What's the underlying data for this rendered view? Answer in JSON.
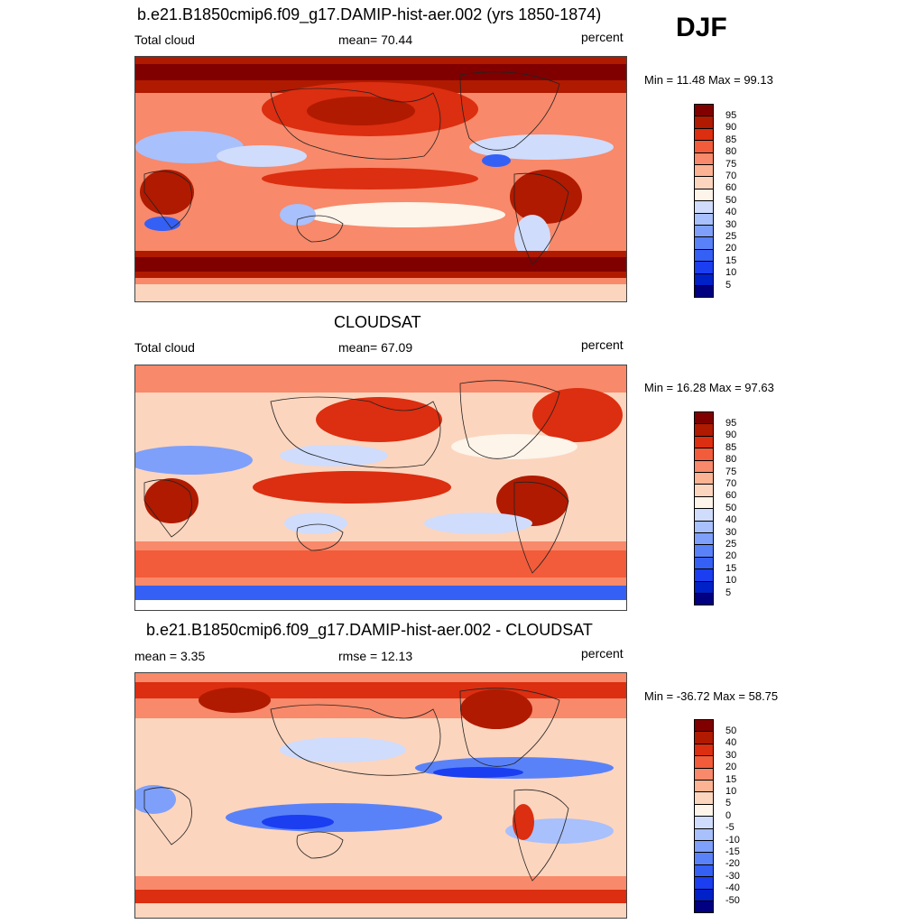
{
  "season": "DJF",
  "palette_levels": {
    "abs": [
      "5",
      "10",
      "15",
      "20",
      "25",
      "30",
      "40",
      "50",
      "60",
      "70",
      "75",
      "80",
      "85",
      "90",
      "95"
    ],
    "diff": [
      "-50",
      "-40",
      "-30",
      "-20",
      "-15",
      "-10",
      "-5",
      "0",
      "5",
      "10",
      "15",
      "20",
      "30",
      "40",
      "50"
    ]
  },
  "colors": {
    "abs": [
      "#000080",
      "#0020c8",
      "#1a3ef0",
      "#3560f5",
      "#5a82f8",
      "#7ea0fa",
      "#a8c0fb",
      "#cfdcfc",
      "#fdf4ea",
      "#fcd5be",
      "#fbb393",
      "#f8896a",
      "#f25c3a",
      "#dc2e10",
      "#b01a00",
      "#800000"
    ],
    "diff": [
      "#000080",
      "#0020c8",
      "#1a3ef0",
      "#3560f5",
      "#5a82f8",
      "#7ea0fa",
      "#a8c0fb",
      "#cfdcfc",
      "#fdf4ea",
      "#fcd5be",
      "#fbb393",
      "#f8896a",
      "#f25c3a",
      "#dc2e10",
      "#b01a00",
      "#800000"
    ]
  },
  "panels": [
    {
      "title": "b.e21.B1850cmip6.f09_g17.DAMIP-hist-aer.002 (yrs 1850-1874)",
      "left_label": "Total cloud",
      "center_label": "mean=  70.44",
      "right_label": "percent",
      "minmax": "Min =  11.48 Max =  99.13",
      "legend": "abs"
    },
    {
      "title": "CLOUDSAT",
      "left_label": "Total cloud",
      "center_label": "mean=  67.09",
      "right_label": "percent",
      "minmax": "Min =  16.28 Max =  97.63",
      "legend": "abs"
    },
    {
      "title": "b.e21.B1850cmip6.f09_g17.DAMIP-hist-aer.002 - CLOUDSAT",
      "left_label": "mean =   3.35",
      "center_label": "rmse =  12.13",
      "right_label": "percent",
      "minmax": "Min = -36.72 Max =  58.75",
      "legend": "diff"
    }
  ]
}
